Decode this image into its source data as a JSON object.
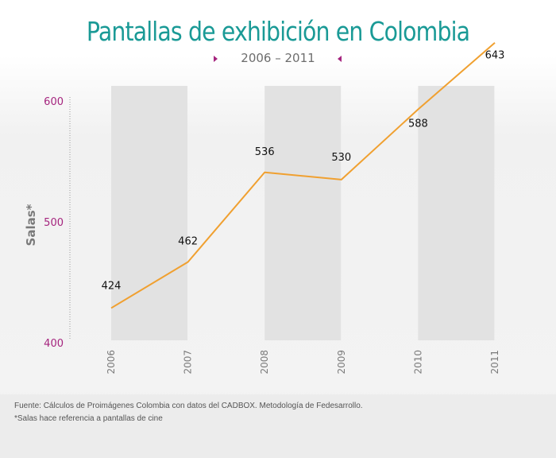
{
  "title": "Pantallas de exhibición en Colombia",
  "subtitle": "2006 –  2011",
  "colors": {
    "title": "#1a9a96",
    "accent": "#a5247e",
    "line": "#f0a030",
    "band": "#e2e2e2"
  },
  "chart_data": {
    "type": "line",
    "title": "Pantallas de exhibición en Colombia",
    "subtitle": "2006 –  2011",
    "xlabel": "",
    "ylabel": "Salas*",
    "x": [
      "2006",
      "2007",
      "2008",
      "2009",
      "2010",
      "2011"
    ],
    "series": [
      {
        "values": [
          424,
          462,
          536,
          530,
          588,
          643
        ]
      }
    ],
    "data_labels": [
      "424",
      "462",
      "536",
      "530",
      "588",
      "643"
    ],
    "yticks": [
      "400",
      "500",
      "600"
    ],
    "ylim": [
      400,
      600
    ],
    "grid": false,
    "legend": "none"
  },
  "footer": {
    "source": "Fuente: Cálculos de Proimágenes Colombia con datos del CADBOX. Metodología de Fedesarrollo.",
    "note": "*Salas hace referencia a pantallas de cine"
  }
}
